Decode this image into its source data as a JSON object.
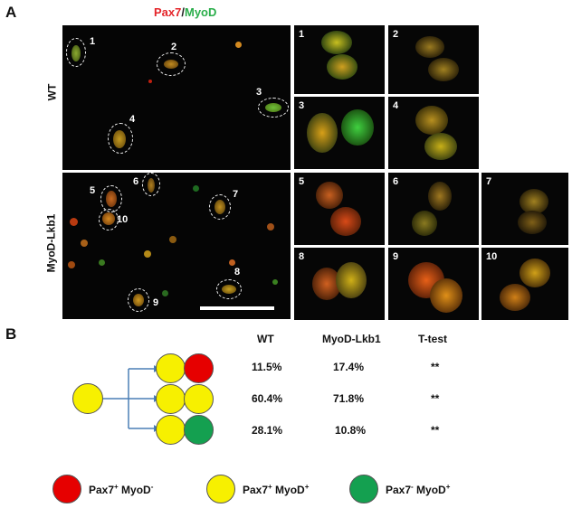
{
  "panel_a_letter": "A",
  "panel_b_letter": "B",
  "stain": {
    "pax7": "Pax7",
    "sep": "/",
    "myod": "MyoD"
  },
  "row_labels": {
    "wt": "WT",
    "mutant": "MyoD-Lkb1"
  },
  "wt_cell_numbers": [
    "1",
    "2",
    "3",
    "4"
  ],
  "mutant_cell_numbers": [
    "5",
    "6",
    "7",
    "10",
    "8",
    "9"
  ],
  "wt_tiles": [
    "1",
    "2",
    "3",
    "4"
  ],
  "mutant_tiles": [
    "5",
    "6",
    "7",
    "8",
    "9",
    "10"
  ],
  "table": {
    "headers": [
      "WT",
      "MyoD-Lkb1",
      "T-test"
    ],
    "rows": [
      {
        "wt": "11.5%",
        "mutant": "17.4%",
        "ttest": "**"
      },
      {
        "wt": "60.4%",
        "mutant": "71.8%",
        "ttest": "**"
      },
      {
        "wt": "28.1%",
        "mutant": "10.8%",
        "ttest": "**"
      }
    ]
  },
  "legend": [
    {
      "color": "#e60000",
      "base1": "Pax7",
      "sup1": "+",
      "base2": " MyoD",
      "sup2": "-"
    },
    {
      "color": "#f7f000",
      "base1": "Pax7",
      "sup1": "+",
      "base2": " MyoD",
      "sup2": "+"
    },
    {
      "color": "#14a050",
      "base1": "Pax7",
      "sup1": "-",
      "base2": " MyoD",
      "sup2": "+"
    }
  ],
  "colors": {
    "red": "#e4252a",
    "green": "#2bae4b",
    "yellow": "#f7f000",
    "arrow": "#4a7fb5"
  }
}
